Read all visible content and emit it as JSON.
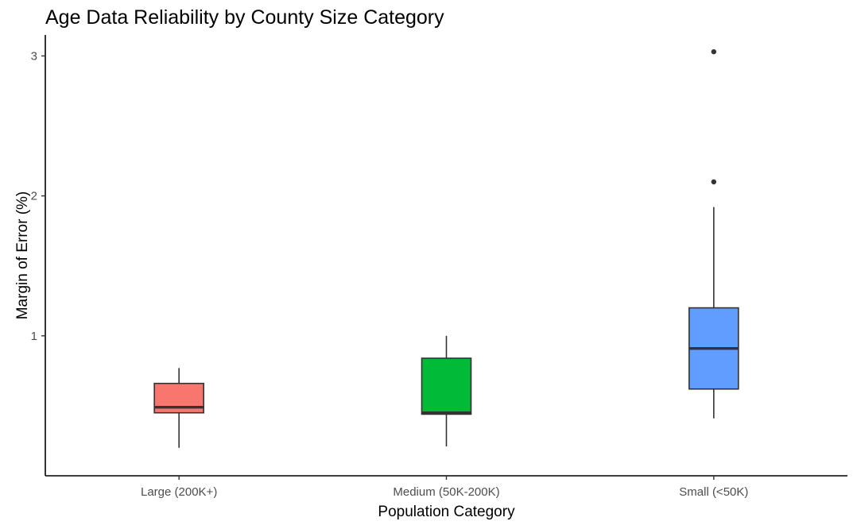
{
  "chart_data": {
    "type": "box",
    "title": "Age Data Reliability by County Size Category",
    "xlabel": "Population Category",
    "ylabel": "Margin of Error (%)",
    "ylim": [
      0.0,
      3.15
    ],
    "y_ticks": [
      1,
      2,
      3
    ],
    "categories": [
      "Large (200K+)",
      "Medium (50K-200K)",
      "Small (<50K)"
    ],
    "colors": [
      "#F8766D",
      "#00BA38",
      "#619CFF"
    ],
    "series": [
      {
        "category": "Large (200K+)",
        "min": 0.2,
        "q1": 0.45,
        "median": 0.49,
        "q3": 0.66,
        "max": 0.77,
        "outliers": []
      },
      {
        "category": "Medium (50K-200K)",
        "min": 0.21,
        "q1": 0.44,
        "median": 0.45,
        "q3": 0.84,
        "max": 1.0,
        "outliers": []
      },
      {
        "category": "Small (<50K)",
        "min": 0.41,
        "q1": 0.62,
        "median": 0.91,
        "q3": 1.2,
        "max": 1.92,
        "outliers": [
          2.1,
          3.03
        ]
      }
    ],
    "grid": false,
    "legend": "none"
  }
}
